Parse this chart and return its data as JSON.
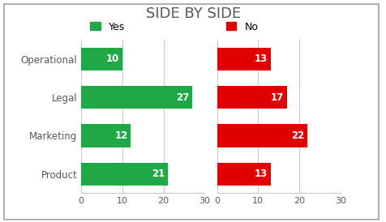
{
  "title": "SIDE BY SIDE",
  "categories": [
    "Operational",
    "Legal",
    "Marketing",
    "Product"
  ],
  "yes_values": [
    10,
    27,
    12,
    21
  ],
  "no_values": [
    13,
    17,
    22,
    13
  ],
  "yes_color": "#21A846",
  "no_color": "#E00000",
  "bar_label_color": "#FFFFFF",
  "title_color": "#595959",
  "legend_yes": "Yes",
  "legend_no": "No",
  "xlim": [
    0,
    30
  ],
  "tick_values": [
    0,
    10,
    20,
    30
  ],
  "bg_color": "#FFFFFF",
  "grid_color": "#C8C8C8",
  "axis_label_color": "#595959",
  "tick_label_color": "#595959",
  "bar_height": 0.6,
  "title_fontsize": 13,
  "label_fontsize": 8.5,
  "tick_fontsize": 8,
  "legend_fontsize": 9
}
